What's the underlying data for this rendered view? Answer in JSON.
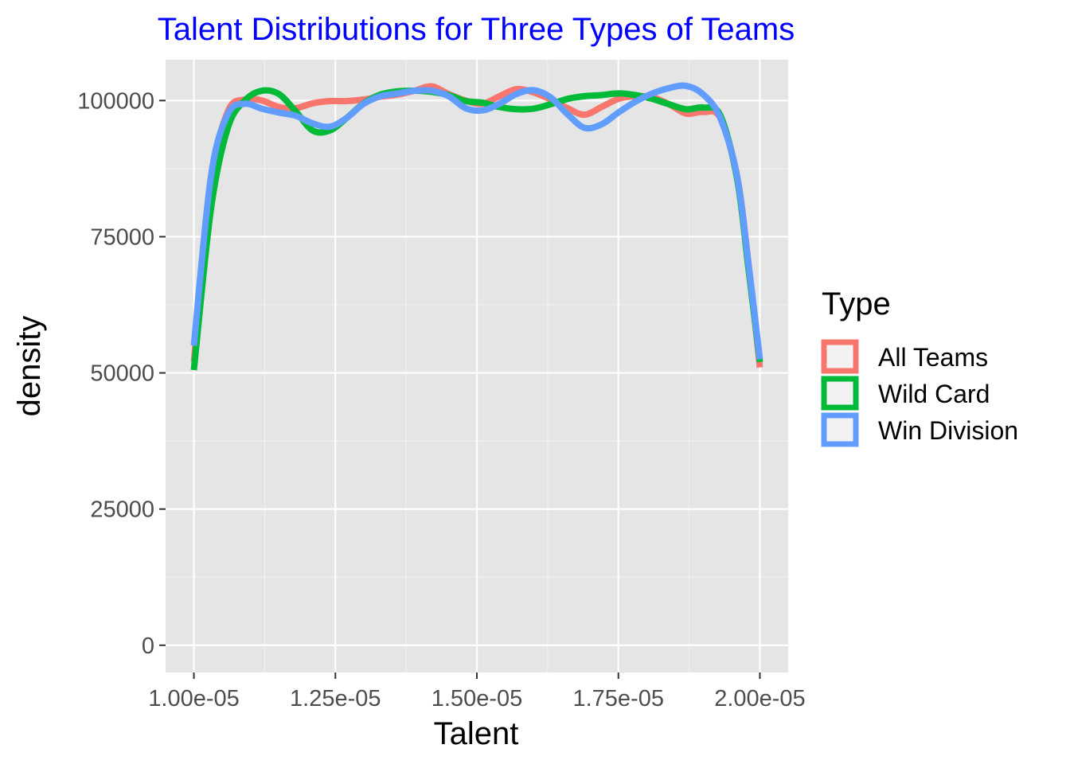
{
  "chart_data": {
    "type": "line",
    "title": "Talent Distributions for Three Types of Teams",
    "title_color": "#0000ff",
    "xlabel": "Talent",
    "ylabel": "density",
    "xlim": [
      9.5e-06,
      2.05e-05
    ],
    "ylim": [
      -5000,
      107500
    ],
    "x_ticks": [
      1e-05,
      1.25e-05,
      1.5e-05,
      1.75e-05,
      2e-05
    ],
    "x_tick_labels": [
      "1.00e-05",
      "1.25e-05",
      "1.50e-05",
      "1.75e-05",
      "2.00e-05"
    ],
    "y_ticks": [
      0,
      25000,
      50000,
      75000,
      100000
    ],
    "y_tick_labels": [
      "0",
      "25000",
      "50000",
      "75000",
      "100000"
    ],
    "grid": true,
    "panel_background": "#e5e5e5",
    "legend": {
      "title": "Type",
      "position": "right"
    },
    "series": [
      {
        "name": "All Teams",
        "color": "#f8766d",
        "x": [
          1e-05,
          1.03e-05,
          1.06e-05,
          1.09e-05,
          1.12e-05,
          1.15e-05,
          1.18e-05,
          1.21e-05,
          1.24e-05,
          1.27e-05,
          1.3e-05,
          1.33e-05,
          1.36e-05,
          1.39e-05,
          1.42e-05,
          1.45e-05,
          1.48e-05,
          1.51e-05,
          1.54e-05,
          1.57e-05,
          1.6e-05,
          1.63e-05,
          1.66e-05,
          1.69e-05,
          1.72e-05,
          1.75e-05,
          1.78e-05,
          1.81e-05,
          1.84e-05,
          1.87e-05,
          1.9e-05,
          1.93e-05,
          1.96e-05,
          1.98e-05,
          2e-05
        ],
        "y": [
          52000,
          85000,
          98000,
          100200,
          100000,
          98800,
          98600,
          99500,
          99900,
          99900,
          100200,
          100700,
          101100,
          101800,
          102600,
          101200,
          100000,
          99400,
          100800,
          102100,
          101500,
          100200,
          98600,
          97400,
          98800,
          100300,
          100800,
          100600,
          99300,
          97600,
          97900,
          96800,
          86000,
          70000,
          51000
        ]
      },
      {
        "name": "Wild Card",
        "color": "#00ba38",
        "x": [
          1e-05,
          1.03e-05,
          1.06e-05,
          1.09e-05,
          1.12e-05,
          1.15e-05,
          1.18e-05,
          1.21e-05,
          1.24e-05,
          1.27e-05,
          1.3e-05,
          1.33e-05,
          1.36e-05,
          1.39e-05,
          1.42e-05,
          1.45e-05,
          1.48e-05,
          1.51e-05,
          1.54e-05,
          1.57e-05,
          1.6e-05,
          1.63e-05,
          1.66e-05,
          1.69e-05,
          1.72e-05,
          1.75e-05,
          1.78e-05,
          1.81e-05,
          1.84e-05,
          1.87e-05,
          1.9e-05,
          1.93e-05,
          1.96e-05,
          1.98e-05,
          2e-05
        ],
        "y": [
          50500,
          80000,
          95000,
          100000,
          101800,
          101200,
          98000,
          94500,
          94500,
          96800,
          99500,
          101100,
          101700,
          101800,
          101600,
          101000,
          99900,
          99600,
          98800,
          98400,
          98500,
          99300,
          100300,
          100800,
          101000,
          101300,
          101000,
          100300,
          99300,
          98400,
          98700,
          97300,
          85500,
          69000,
          52000
        ]
      },
      {
        "name": "Win Division",
        "color": "#619cff",
        "x": [
          1e-05,
          1.03e-05,
          1.06e-05,
          1.09e-05,
          1.12e-05,
          1.15e-05,
          1.18e-05,
          1.21e-05,
          1.24e-05,
          1.27e-05,
          1.3e-05,
          1.33e-05,
          1.36e-05,
          1.39e-05,
          1.42e-05,
          1.45e-05,
          1.48e-05,
          1.51e-05,
          1.54e-05,
          1.57e-05,
          1.6e-05,
          1.63e-05,
          1.66e-05,
          1.69e-05,
          1.72e-05,
          1.75e-05,
          1.78e-05,
          1.81e-05,
          1.84e-05,
          1.87e-05,
          1.9e-05,
          1.93e-05,
          1.96e-05,
          1.98e-05,
          2e-05
        ],
        "y": [
          55000,
          86000,
          97500,
          99400,
          98500,
          97800,
          97200,
          95800,
          95200,
          96800,
          99400,
          100800,
          101300,
          101800,
          101800,
          100800,
          98600,
          98200,
          99400,
          101200,
          101900,
          100600,
          97500,
          95000,
          95600,
          97800,
          99800,
          101300,
          102300,
          102700,
          101100,
          96800,
          86000,
          70000,
          52500
        ]
      }
    ]
  }
}
